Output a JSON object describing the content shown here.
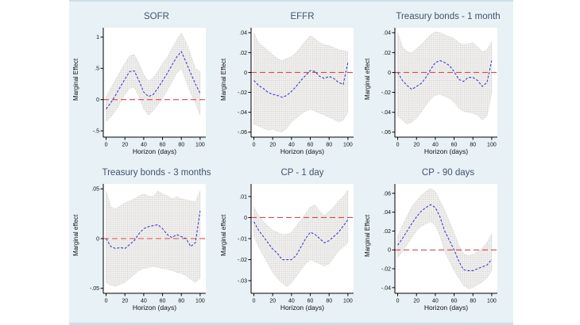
{
  "figure": {
    "layout": "2x3 grid of subplots",
    "background": "#e8f1f5",
    "edge_color": "#cddfe9"
  },
  "style": {
    "title_color": "#42536f",
    "line_color": "#3c42c8",
    "zero_line_color": "#d8484e",
    "band_dot_color": "#c9c9c9",
    "band_bg_color": "#f2f1ef",
    "axis_color": "#000000",
    "plot_bg": "#ffffff"
  },
  "chart_data": [
    {
      "type": "line",
      "title": "SOFR",
      "ylabel": "Marginal Effect",
      "xlabel": "Horizon (days)",
      "x": [
        0,
        5,
        10,
        15,
        20,
        25,
        30,
        35,
        40,
        45,
        50,
        55,
        60,
        65,
        70,
        75,
        80,
        85,
        90,
        95,
        100
      ],
      "series": [
        {
          "name": "marginal-effect",
          "values": [
            -0.15,
            -0.05,
            0.07,
            0.2,
            0.33,
            0.45,
            0.46,
            0.3,
            0.12,
            0.05,
            0.08,
            0.18,
            0.3,
            0.42,
            0.55,
            0.68,
            0.77,
            0.6,
            0.42,
            0.25,
            0.1
          ]
        },
        {
          "name": "ci-upper",
          "values": [
            0.05,
            0.18,
            0.32,
            0.45,
            0.58,
            0.7,
            0.72,
            0.58,
            0.4,
            0.3,
            0.35,
            0.45,
            0.58,
            0.68,
            0.82,
            0.95,
            1.07,
            0.92,
            0.72,
            0.5,
            0.45
          ]
        },
        {
          "name": "ci-lower",
          "values": [
            -0.35,
            -0.28,
            -0.18,
            -0.05,
            0.08,
            0.18,
            0.2,
            0.05,
            -0.15,
            -0.25,
            -0.18,
            -0.08,
            0.02,
            0.15,
            0.28,
            0.42,
            0.5,
            0.3,
            0.1,
            -0.05,
            -0.25
          ]
        }
      ],
      "ylim": [
        -0.6,
        1.15
      ],
      "yticks": [
        {
          "v": 1,
          "label": "1"
        },
        {
          "v": 0.5,
          "label": ".5"
        },
        {
          "v": 0,
          "label": "0"
        },
        {
          "v": -0.5,
          "label": "-.5"
        }
      ],
      "xticks": [
        0,
        20,
        40,
        60,
        80,
        100
      ],
      "zero_line": 0,
      "grid": false,
      "legend": "none"
    },
    {
      "type": "line",
      "title": "EFFR",
      "ylabel": "Marginal Effect",
      "xlabel": "Horizon (days)",
      "x": [
        0,
        5,
        10,
        15,
        20,
        25,
        30,
        35,
        40,
        45,
        50,
        55,
        60,
        65,
        70,
        75,
        80,
        85,
        90,
        95,
        100
      ],
      "series": [
        {
          "name": "marginal-effect",
          "values": [
            -0.008,
            -0.013,
            -0.016,
            -0.02,
            -0.022,
            -0.023,
            -0.025,
            -0.023,
            -0.019,
            -0.014,
            -0.008,
            -0.003,
            0.002,
            0.001,
            -0.004,
            -0.006,
            -0.004,
            -0.006,
            -0.01,
            -0.012,
            0.01
          ]
        },
        {
          "name": "ci-upper",
          "values": [
            0.04,
            0.03,
            0.026,
            0.022,
            0.018,
            0.014,
            0.012,
            0.014,
            0.016,
            0.02,
            0.026,
            0.032,
            0.037,
            0.034,
            0.03,
            0.028,
            0.027,
            0.025,
            0.023,
            0.022,
            0.021
          ]
        },
        {
          "name": "ci-lower",
          "values": [
            -0.052,
            -0.054,
            -0.056,
            -0.058,
            -0.057,
            -0.059,
            -0.06,
            -0.056,
            -0.05,
            -0.046,
            -0.042,
            -0.039,
            -0.037,
            -0.039,
            -0.041,
            -0.043,
            -0.045,
            -0.047,
            -0.05,
            -0.048,
            -0.04
          ]
        }
      ],
      "ylim": [
        -0.065,
        0.045
      ],
      "yticks": [
        {
          "v": 0.04,
          "label": ".04"
        },
        {
          "v": 0.02,
          "label": ".02"
        },
        {
          "v": 0,
          "label": "0"
        },
        {
          "v": -0.02,
          "label": "-.02"
        },
        {
          "v": -0.04,
          "label": "-.04"
        },
        {
          "v": -0.06,
          "label": "-.06"
        }
      ],
      "xticks": [
        0,
        20,
        40,
        60,
        80,
        100
      ],
      "zero_line": 0,
      "grid": false,
      "legend": "none"
    },
    {
      "type": "line",
      "title": "Treasury bonds - 1 month",
      "ylabel": "Marginal effect",
      "xlabel": "Horizon (days)",
      "x": [
        0,
        5,
        10,
        15,
        20,
        25,
        30,
        35,
        40,
        45,
        50,
        55,
        60,
        65,
        70,
        75,
        80,
        85,
        90,
        95,
        100
      ],
      "series": [
        {
          "name": "marginal-effect",
          "values": [
            0.0,
            -0.008,
            -0.013,
            -0.017,
            -0.014,
            -0.011,
            -0.005,
            0.003,
            0.01,
            0.012,
            0.01,
            0.007,
            0.001,
            -0.007,
            -0.009,
            -0.005,
            -0.005,
            -0.008,
            -0.014,
            -0.01,
            0.012
          ]
        },
        {
          "name": "ci-upper",
          "values": [
            0.04,
            0.026,
            0.021,
            0.02,
            0.024,
            0.028,
            0.033,
            0.038,
            0.041,
            0.04,
            0.038,
            0.036,
            0.034,
            0.03,
            0.028,
            0.029,
            0.03,
            0.026,
            0.021,
            0.023,
            0.031
          ]
        },
        {
          "name": "ci-lower",
          "values": [
            -0.044,
            -0.048,
            -0.052,
            -0.05,
            -0.046,
            -0.04,
            -0.033,
            -0.027,
            -0.023,
            -0.022,
            -0.024,
            -0.026,
            -0.03,
            -0.036,
            -0.039,
            -0.04,
            -0.041,
            -0.043,
            -0.048,
            -0.044,
            -0.02
          ]
        }
      ],
      "ylim": [
        -0.065,
        0.045
      ],
      "yticks": [
        {
          "v": 0.04,
          "label": ".04"
        },
        {
          "v": 0.02,
          "label": ".02"
        },
        {
          "v": 0,
          "label": "0"
        },
        {
          "v": -0.02,
          "label": "-.02"
        },
        {
          "v": -0.04,
          "label": "-.04"
        },
        {
          "v": -0.06,
          "label": "-.06"
        }
      ],
      "xticks": [
        0,
        20,
        40,
        60,
        80,
        100
      ],
      "zero_line": 0,
      "grid": false,
      "legend": "none"
    },
    {
      "type": "line",
      "title": "Treasury bonds - 3 months",
      "ylabel": "Marginal effect",
      "xlabel": "Horizon (days)",
      "x": [
        0,
        5,
        10,
        15,
        20,
        25,
        30,
        35,
        40,
        45,
        50,
        55,
        60,
        65,
        70,
        75,
        80,
        85,
        90,
        95,
        100
      ],
      "series": [
        {
          "name": "marginal-effect",
          "values": [
            0.0,
            -0.008,
            -0.01,
            -0.009,
            -0.01,
            -0.006,
            -0.002,
            0.005,
            0.01,
            0.012,
            0.013,
            0.014,
            0.01,
            0.004,
            0.001,
            0.004,
            0.002,
            0.0,
            -0.008,
            -0.004,
            0.028
          ]
        },
        {
          "name": "ci-upper",
          "values": [
            0.048,
            0.032,
            0.03,
            0.033,
            0.036,
            0.038,
            0.04,
            0.043,
            0.045,
            0.043,
            0.042,
            0.048,
            0.045,
            0.043,
            0.04,
            0.042,
            0.04,
            0.039,
            0.038,
            0.037,
            0.048
          ]
        },
        {
          "name": "ci-lower",
          "values": [
            -0.044,
            -0.047,
            -0.048,
            -0.046,
            -0.044,
            -0.04,
            -0.036,
            -0.032,
            -0.03,
            -0.029,
            -0.028,
            -0.029,
            -0.03,
            -0.031,
            -0.032,
            -0.034,
            -0.035,
            -0.037,
            -0.041,
            -0.044,
            -0.04
          ]
        }
      ],
      "ylim": [
        -0.055,
        0.055
      ],
      "yticks": [
        {
          "v": 0.05,
          "label": ".05"
        },
        {
          "v": 0,
          "label": "0"
        },
        {
          "v": -0.05,
          "label": "-.05"
        }
      ],
      "xticks": [
        0,
        20,
        40,
        60,
        80,
        100
      ],
      "zero_line": 0,
      "grid": false,
      "legend": "none"
    },
    {
      "type": "line",
      "title": "CP - 1 day",
      "ylabel": "Marginal effect",
      "xlabel": "Horizon (days)",
      "x": [
        0,
        5,
        10,
        15,
        20,
        25,
        30,
        35,
        40,
        45,
        50,
        55,
        60,
        65,
        70,
        75,
        80,
        85,
        90,
        95,
        100
      ],
      "series": [
        {
          "name": "marginal-effect",
          "values": [
            -0.002,
            -0.006,
            -0.009,
            -0.012,
            -0.015,
            -0.017,
            -0.02,
            -0.02,
            -0.02,
            -0.018,
            -0.014,
            -0.01,
            -0.007,
            -0.008,
            -0.01,
            -0.012,
            -0.011,
            -0.009,
            -0.007,
            -0.004,
            -0.001
          ]
        },
        {
          "name": "ci-upper",
          "values": [
            0.005,
            0.001,
            -0.002,
            -0.004,
            -0.006,
            -0.007,
            -0.008,
            -0.008,
            -0.007,
            -0.004,
            -0.001,
            0.002,
            0.005,
            0.006,
            0.003,
            0.001,
            0.003,
            0.005,
            0.008,
            0.01,
            0.013
          ]
        },
        {
          "name": "ci-lower",
          "values": [
            -0.009,
            -0.014,
            -0.018,
            -0.022,
            -0.026,
            -0.029,
            -0.031,
            -0.033,
            -0.031,
            -0.028,
            -0.025,
            -0.022,
            -0.02,
            -0.021,
            -0.022,
            -0.023,
            -0.022,
            -0.019,
            -0.016,
            -0.014,
            -0.012
          ]
        }
      ],
      "ylim": [
        -0.036,
        0.016
      ],
      "yticks": [
        {
          "v": 0.01,
          "label": ".01"
        },
        {
          "v": 0,
          "label": "0"
        },
        {
          "v": -0.01,
          "label": "-.01"
        },
        {
          "v": -0.02,
          "label": "-.02"
        },
        {
          "v": -0.03,
          "label": "-.03"
        }
      ],
      "xticks": [
        0,
        20,
        40,
        60,
        80,
        100
      ],
      "zero_line": 0,
      "grid": false,
      "legend": "none"
    },
    {
      "type": "line",
      "title": "CP - 90 days",
      "ylabel": "Marginal Effect",
      "xlabel": "Horizon (days)",
      "x": [
        0,
        5,
        10,
        15,
        20,
        25,
        30,
        35,
        40,
        45,
        50,
        55,
        60,
        65,
        70,
        75,
        80,
        85,
        90,
        95,
        100
      ],
      "series": [
        {
          "name": "marginal-effect",
          "values": [
            0.005,
            0.012,
            0.02,
            0.028,
            0.035,
            0.041,
            0.045,
            0.048,
            0.045,
            0.035,
            0.02,
            0.01,
            0.0,
            -0.012,
            -0.021,
            -0.022,
            -0.022,
            -0.02,
            -0.018,
            -0.016,
            -0.01
          ]
        },
        {
          "name": "ci-upper",
          "values": [
            0.015,
            0.026,
            0.036,
            0.046,
            0.052,
            0.058,
            0.062,
            0.065,
            0.062,
            0.052,
            0.042,
            0.03,
            0.018,
            0.005,
            -0.004,
            -0.006,
            -0.005,
            -0.002,
            0.002,
            0.008,
            0.017
          ]
        },
        {
          "name": "ci-lower",
          "values": [
            -0.008,
            -0.002,
            0.006,
            0.013,
            0.02,
            0.025,
            0.028,
            0.03,
            0.026,
            0.015,
            -0.002,
            -0.012,
            -0.022,
            -0.03,
            -0.038,
            -0.041,
            -0.04,
            -0.037,
            -0.034,
            -0.03,
            -0.022
          ]
        }
      ],
      "ylim": [
        -0.046,
        0.07
      ],
      "yticks": [
        {
          "v": 0.06,
          "label": ".06"
        },
        {
          "v": 0.04,
          "label": ".04"
        },
        {
          "v": 0.02,
          "label": ".02"
        },
        {
          "v": 0,
          "label": "0"
        },
        {
          "v": -0.02,
          "label": "-.02"
        },
        {
          "v": -0.04,
          "label": "-.04"
        }
      ],
      "xticks": [
        0,
        20,
        40,
        60,
        80,
        100
      ],
      "zero_line": 0,
      "grid": false,
      "legend": "none"
    }
  ]
}
